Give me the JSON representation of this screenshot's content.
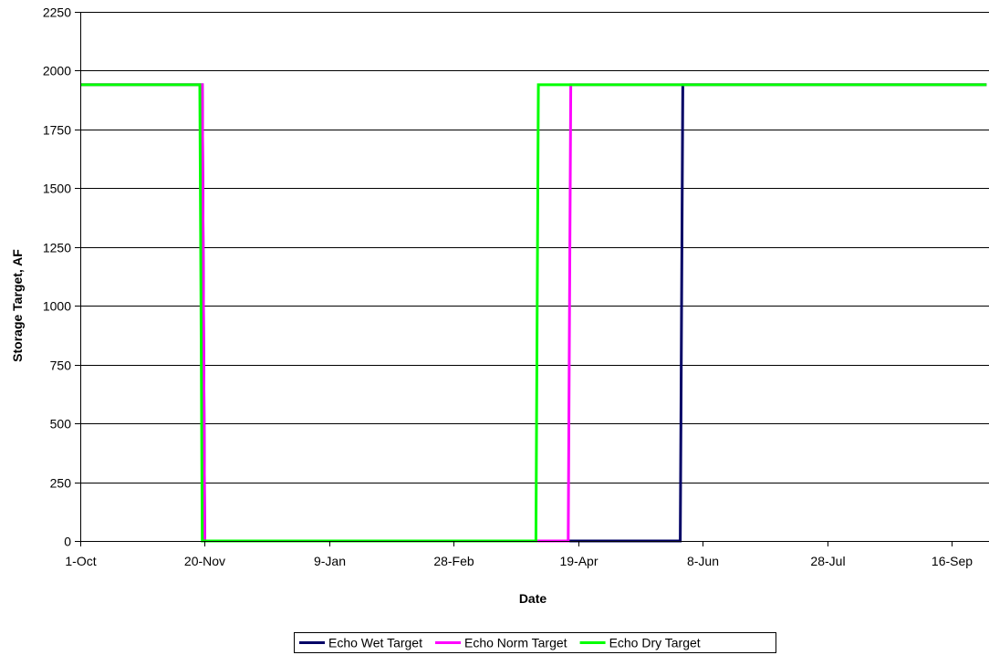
{
  "chart_data": {
    "type": "line",
    "xlabel": "Date",
    "ylabel": "Storage Target, AF",
    "ylim": [
      0,
      2250
    ],
    "yticks": [
      0,
      250,
      500,
      750,
      1000,
      1250,
      1500,
      1750,
      2000,
      2250
    ],
    "xlim": [
      "1-Oct",
      "30-Sep"
    ],
    "xticks": [
      "1-Oct",
      "20-Nov",
      "9-Jan",
      "28-Feb",
      "19-Apr",
      "8-Jun",
      "28-Jul",
      "16-Sep"
    ],
    "grid": "horizontal",
    "legend_position": "bottom",
    "series": [
      {
        "name": "Echo Wet Target",
        "color": "#000066",
        "points": [
          [
            "1-Oct",
            1940
          ],
          [
            "19-Nov",
            1940
          ],
          [
            "20-Nov",
            0
          ],
          [
            "30-May",
            0
          ],
          [
            "31-May",
            1940
          ],
          [
            "30-Sep",
            1940
          ]
        ]
      },
      {
        "name": "Echo Norm Target",
        "color": "#ff00ff",
        "points": [
          [
            "1-Oct",
            1940
          ],
          [
            "19-Nov",
            1940
          ],
          [
            "20-Nov",
            0
          ],
          [
            "15-Apr",
            0
          ],
          [
            "16-Apr",
            1940
          ],
          [
            "30-Sep",
            1940
          ]
        ]
      },
      {
        "name": "Echo Dry Target",
        "color": "#00ff00",
        "points": [
          [
            "1-Oct",
            1940
          ],
          [
            "18-Nov",
            1940
          ],
          [
            "19-Nov",
            0
          ],
          [
            "2-Apr",
            0
          ],
          [
            "3-Apr",
            1940
          ],
          [
            "30-Sep",
            1940
          ]
        ]
      }
    ]
  }
}
